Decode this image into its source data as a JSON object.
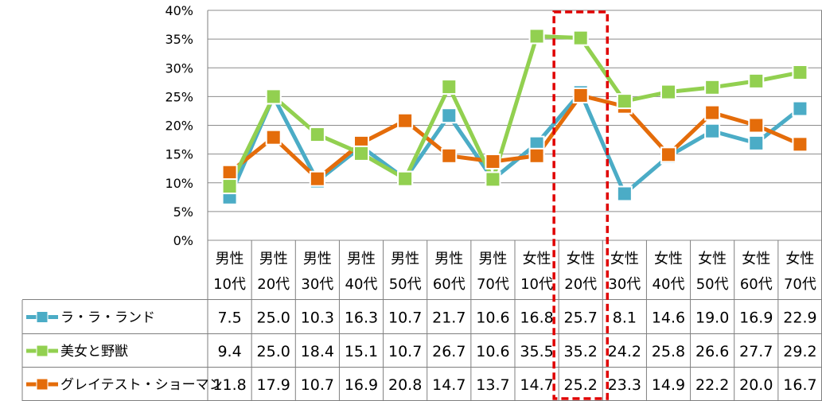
{
  "chart_data": {
    "type": "line",
    "title": "",
    "xlabel": "",
    "ylabel": "",
    "ylim": [
      0,
      40
    ],
    "y_ticks": [
      "0%",
      "5%",
      "10%",
      "15%",
      "20%",
      "25%",
      "30%",
      "35%",
      "40%"
    ],
    "grid": true,
    "legend": "data-table",
    "categories": [
      {
        "line1": "男性",
        "line2": "10代"
      },
      {
        "line1": "男性",
        "line2": "20代"
      },
      {
        "line1": "男性",
        "line2": "30代"
      },
      {
        "line1": "男性",
        "line2": "40代"
      },
      {
        "line1": "男性",
        "line2": "50代"
      },
      {
        "line1": "男性",
        "line2": "60代"
      },
      {
        "line1": "男性",
        "line2": "70代"
      },
      {
        "line1": "女性",
        "line2": "10代"
      },
      {
        "line1": "女性",
        "line2": "20代"
      },
      {
        "line1": "女性",
        "line2": "30代"
      },
      {
        "line1": "女性",
        "line2": "40代"
      },
      {
        "line1": "女性",
        "line2": "50代"
      },
      {
        "line1": "女性",
        "line2": "60代"
      },
      {
        "line1": "女性",
        "line2": "70代"
      }
    ],
    "series": [
      {
        "name": "ラ・ラ・ランド",
        "color": "#4BACC6",
        "values": [
          7.5,
          25.0,
          10.3,
          16.3,
          10.7,
          21.7,
          10.6,
          16.8,
          25.7,
          8.1,
          14.6,
          19.0,
          16.9,
          22.9
        ],
        "labels": [
          "7.5",
          "25.0",
          "10.3",
          "16.3",
          "10.7",
          "21.7",
          "10.6",
          "16.8",
          "25.7",
          "8.1",
          "14.6",
          "19.0",
          "16.9",
          "22.9"
        ]
      },
      {
        "name": "美女と野獣",
        "color": "#92D050",
        "values": [
          9.4,
          25.0,
          18.4,
          15.1,
          10.7,
          26.7,
          10.6,
          35.5,
          35.2,
          24.2,
          25.8,
          26.6,
          27.7,
          29.2
        ],
        "labels": [
          "9.4",
          "25.0",
          "18.4",
          "15.1",
          "10.7",
          "26.7",
          "10.6",
          "35.5",
          "35.2",
          "24.2",
          "25.8",
          "26.6",
          "27.7",
          "29.2"
        ]
      },
      {
        "name": "グレイテスト・ショーマン",
        "color": "#E46C0A",
        "values": [
          11.8,
          17.9,
          10.7,
          16.9,
          20.8,
          14.7,
          13.7,
          14.7,
          25.2,
          23.3,
          14.9,
          22.2,
          20.0,
          16.7
        ],
        "labels": [
          "11.8",
          "17.9",
          "10.7",
          "16.9",
          "20.8",
          "14.7",
          "13.7",
          "14.7",
          "25.2",
          "23.3",
          "14.9",
          "22.2",
          "20.0",
          "16.7"
        ]
      }
    ],
    "highlight": {
      "category_index": 8,
      "color": "#E00000",
      "style": "dashed"
    }
  }
}
